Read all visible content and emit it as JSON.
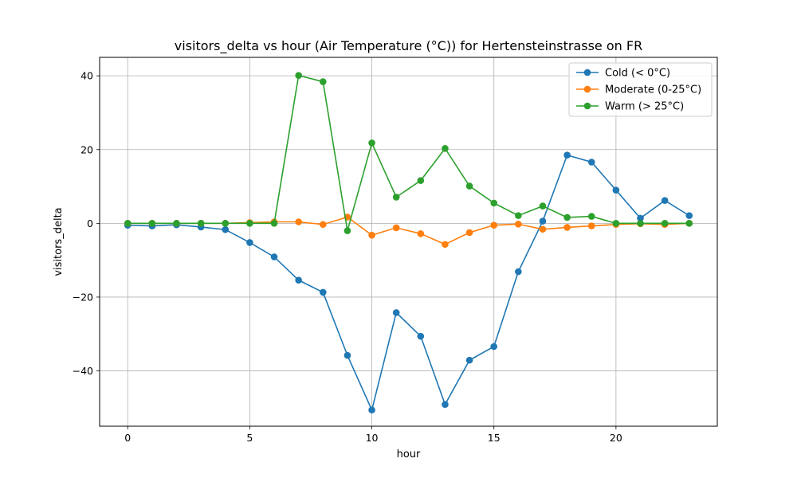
{
  "chart_data": {
    "type": "line",
    "title": "visitors_delta vs hour (Air Temperature (°C)) for Hertensteinstrasse on FR",
    "xlabel": "hour",
    "ylabel": "visitors_delta",
    "xlim": [
      -1.15,
      24.15
    ],
    "ylim": [
      -55,
      45
    ],
    "xticks": [
      0,
      5,
      10,
      15,
      20
    ],
    "yticks": [
      -40,
      -20,
      0,
      20,
      40
    ],
    "xtick_labels": [
      "0",
      "5",
      "10",
      "15",
      "20"
    ],
    "ytick_labels": [
      "−40",
      "−20",
      "0",
      "20",
      "40"
    ],
    "grid": true,
    "legend_position": "top-right",
    "x": [
      0,
      1,
      2,
      3,
      4,
      5,
      6,
      7,
      8,
      9,
      10,
      11,
      12,
      13,
      14,
      15,
      16,
      17,
      18,
      19,
      20,
      21,
      22,
      23
    ],
    "series": [
      {
        "name": "Cold (< 0°C)",
        "color": "#1f77b4",
        "values": [
          -0.5,
          -0.7,
          -0.4,
          -1.0,
          -1.7,
          -5.2,
          -9.1,
          -15.4,
          -18.7,
          -35.8,
          -50.6,
          -24.2,
          -30.6,
          -49.1,
          -37.1,
          -33.4,
          -13.1,
          0.6,
          18.5,
          16.6,
          9.0,
          1.4,
          6.2,
          2.1
        ]
      },
      {
        "name": "Moderate (0-25°C)",
        "color": "#ff7f0e",
        "values": [
          0.0,
          0.0,
          0.0,
          0.0,
          0.0,
          0.2,
          0.4,
          0.4,
          -0.3,
          1.7,
          -3.2,
          -1.2,
          -2.8,
          -5.7,
          -2.5,
          -0.5,
          -0.2,
          -1.6,
          -1.1,
          -0.7,
          -0.3,
          -0.1,
          -0.3,
          0.0
        ]
      },
      {
        "name": "Warm (> 25°C)",
        "color": "#2ca02c",
        "values": [
          0.0,
          0.0,
          0.0,
          0.0,
          0.0,
          0.0,
          0.0,
          40.1,
          38.4,
          -2.0,
          21.8,
          7.1,
          11.6,
          20.3,
          10.1,
          5.5,
          2.1,
          4.7,
          1.6,
          1.9,
          0.0,
          0.0,
          0.0,
          0.0
        ]
      }
    ]
  }
}
